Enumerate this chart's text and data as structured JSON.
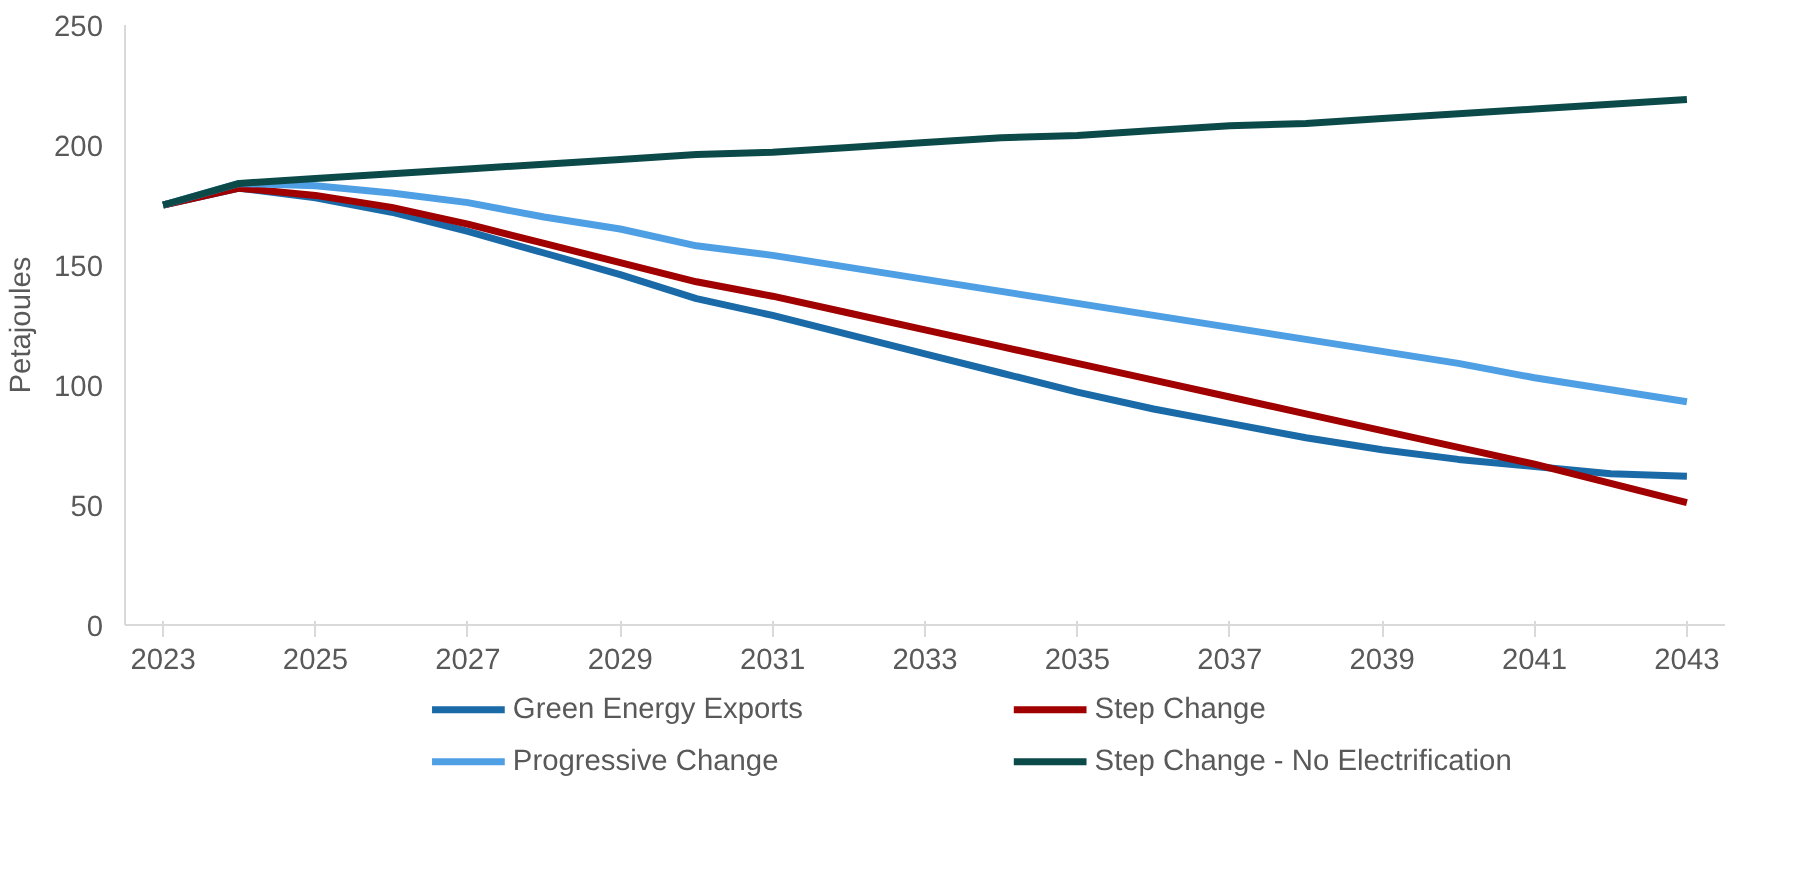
{
  "chart_data": {
    "type": "line",
    "ylabel": "Petajoules",
    "x": [
      2023,
      2024,
      2025,
      2026,
      2027,
      2028,
      2029,
      2030,
      2031,
      2032,
      2033,
      2034,
      2035,
      2036,
      2037,
      2038,
      2039,
      2040,
      2041,
      2042,
      2043
    ],
    "xlim": [
      2022.5,
      2043.5
    ],
    "xticks": [
      2023,
      2025,
      2027,
      2029,
      2031,
      2033,
      2035,
      2037,
      2039,
      2041,
      2043
    ],
    "ylim": [
      0,
      250
    ],
    "yticks": [
      0,
      50,
      100,
      150,
      200,
      250
    ],
    "series": [
      {
        "name": "Green Energy Exports",
        "color": "#1a6aa8",
        "values": [
          175,
          182,
          178,
          172,
          164,
          155,
          146,
          136,
          129,
          121,
          113,
          105,
          97,
          90,
          84,
          78,
          73,
          69,
          66,
          63,
          62
        ]
      },
      {
        "name": "Step Change",
        "color": "#a00000",
        "values": [
          175,
          182,
          179,
          174,
          167,
          159,
          151,
          143,
          137,
          130,
          123,
          116,
          109,
          102,
          95,
          88,
          81,
          74,
          67,
          59,
          51
        ]
      },
      {
        "name": "Progressive Change",
        "color": "#4f9fe5",
        "values": [
          175,
          184,
          183,
          180,
          176,
          170,
          165,
          158,
          154,
          149,
          144,
          139,
          134,
          129,
          124,
          119,
          114,
          109,
          103,
          98,
          93
        ]
      },
      {
        "name": "Step Change - No Electrification",
        "color": "#0c4a4a",
        "values": [
          175,
          184,
          186,
          188,
          190,
          192,
          194,
          196,
          197,
          199,
          201,
          203,
          204,
          206,
          208,
          209,
          211,
          213,
          215,
          217,
          219
        ]
      }
    ],
    "grid": false,
    "legend": "bottom",
    "marker": "none",
    "line_style": "solid"
  }
}
